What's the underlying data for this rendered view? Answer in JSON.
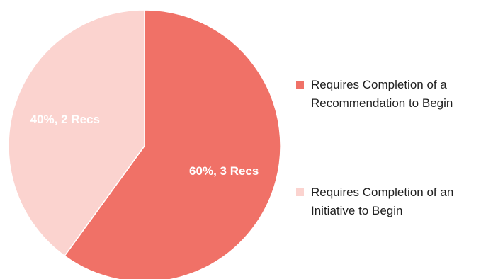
{
  "chart_data": {
    "type": "pie",
    "title": "",
    "start_angle_deg": 0,
    "direction": "clockwise",
    "slices": [
      {
        "label": "Requires Completion of a Recommendation to Begin",
        "value": 60,
        "unit": "%",
        "count": 3,
        "data_label": "60%, 3 Recs",
        "color": "#f07167"
      },
      {
        "label": "Requires Completion of an Initiative to Begin",
        "value": 40,
        "unit": "%",
        "count": 2,
        "data_label": "40%, 2 Recs",
        "color": "#fbd3cf"
      }
    ],
    "legend": {
      "position": "right",
      "items": [
        {
          "label": "Requires Completion of a Recommendation to Begin",
          "color": "#f07167"
        },
        {
          "label": "Requires Completion of an Initiative to Begin",
          "color": "#fbd3cf"
        }
      ]
    }
  }
}
